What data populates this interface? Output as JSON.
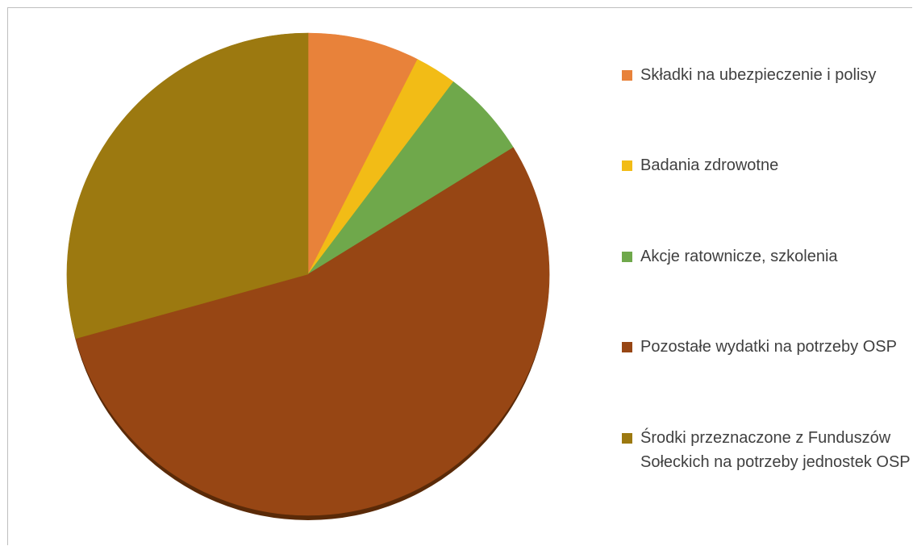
{
  "chart_data": {
    "type": "pie",
    "title": "",
    "start_angle_deg": 0,
    "direction": "clockwise",
    "legend_position": "right",
    "slices": [
      {
        "label": "Składki na ubezpieczenie i polisy",
        "value": 7.5,
        "color": "#E8823A"
      },
      {
        "label": "Badania zdrowotne",
        "value": 2.8,
        "color": "#F2BC16"
      },
      {
        "label": "Akcje ratownicze, szkolenia",
        "value": 5.9,
        "color": "#6FA84B"
      },
      {
        "label": "Pozostałe wydatki na potrzeby OSP",
        "value": 54.5,
        "color": "#974614"
      },
      {
        "label": "Środki przeznaczone z Funduszów Sołeckich na potrzeby jednostek OSP",
        "value": 29.3,
        "color": "#9C7910"
      }
    ]
  }
}
